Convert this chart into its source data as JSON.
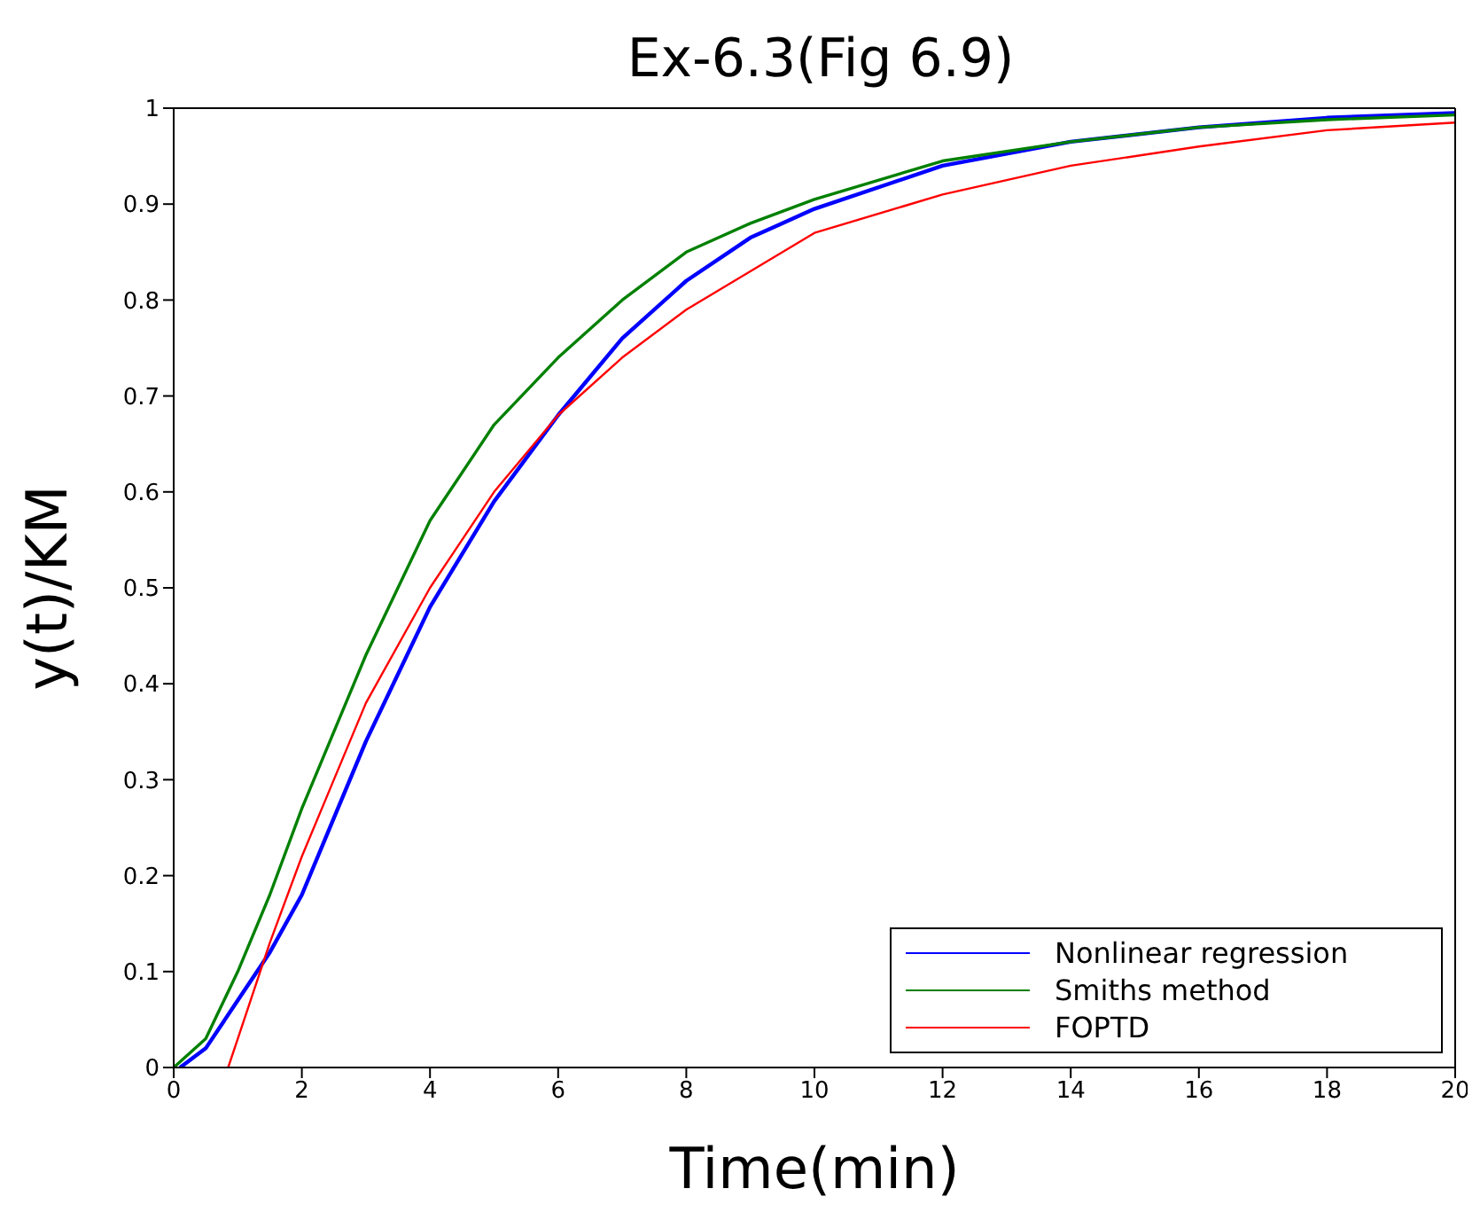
{
  "chart_data": {
    "type": "line",
    "title": "Ex-6.3(Fig 6.9)",
    "xlabel": "Time(min)",
    "ylabel": "y(t)/KM",
    "xlim": [
      0,
      20
    ],
    "xticks": [
      0,
      2,
      4,
      6,
      8,
      10,
      12,
      14,
      16,
      18,
      20
    ],
    "ylim": [
      0,
      1
    ],
    "yticks": [
      0,
      0.1,
      0.2,
      0.3,
      0.4,
      0.5,
      0.6,
      0.7,
      0.8,
      0.9,
      1
    ],
    "grid": false,
    "legend": "bottom right",
    "marker": "none",
    "line_style": "solid",
    "series": [
      {
        "name": "Nonlinear regression",
        "color": "#0000ff",
        "x": [
          0.1,
          0.5,
          1,
          1.5,
          2,
          2.5,
          3,
          4,
          5,
          6,
          7,
          8,
          9,
          10,
          12,
          14,
          16,
          18,
          20
        ],
        "values": [
          0,
          0.02,
          0.07,
          0.12,
          0.18,
          0.26,
          0.34,
          0.48,
          0.59,
          0.68,
          0.76,
          0.82,
          0.865,
          0.895,
          0.94,
          0.965,
          0.98,
          0.99,
          0.995
        ]
      },
      {
        "name": "Smiths method",
        "color": "#008000",
        "x": [
          0,
          0.5,
          1,
          1.5,
          2,
          3,
          4,
          5,
          6,
          7,
          8,
          9,
          10,
          12,
          14,
          16,
          18,
          20
        ],
        "values": [
          0,
          0.03,
          0.1,
          0.18,
          0.27,
          0.43,
          0.57,
          0.67,
          0.74,
          0.8,
          0.85,
          0.88,
          0.905,
          0.945,
          0.965,
          0.98,
          0.988,
          0.993
        ]
      },
      {
        "name": "FOPTD",
        "color": "#ff0000",
        "x": [
          0.85,
          1,
          1.5,
          2,
          2.5,
          3,
          4,
          5,
          6,
          7,
          8,
          9,
          10,
          12,
          14,
          16,
          18,
          20
        ],
        "values": [
          0,
          0.03,
          0.13,
          0.22,
          0.3,
          0.38,
          0.5,
          0.6,
          0.68,
          0.74,
          0.79,
          0.83,
          0.87,
          0.91,
          0.94,
          0.96,
          0.977,
          0.985
        ]
      }
    ]
  }
}
